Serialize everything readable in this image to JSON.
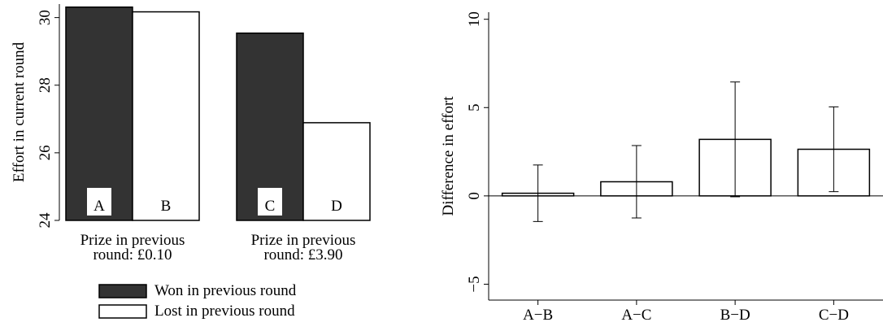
{
  "chart_data": [
    {
      "type": "grouped-bar",
      "ylabel": "Effort in current round",
      "categories": [
        "Prize in previous round: £0.10",
        "Prize in previous round: £3.90"
      ],
      "series": [
        {
          "name": "Won in previous round",
          "color": "#333333",
          "values": [
            30.31,
            29.54
          ],
          "bar_labels": [
            "A",
            "C"
          ]
        },
        {
          "name": "Lost in previous round",
          "color": "#ffffff",
          "values": [
            30.17,
            26.89
          ],
          "bar_labels": [
            "B",
            "D"
          ]
        }
      ],
      "ylim": [
        24,
        30.4
      ],
      "yticks": [
        24,
        26,
        28,
        30
      ]
    },
    {
      "type": "errorbar",
      "ylabel": "Difference in effort",
      "categories": [
        "A−B",
        "A−C",
        "B−D",
        "C−D"
      ],
      "values": [
        0.15,
        0.8,
        3.2,
        2.64
      ],
      "errors": [
        1.6,
        2.05,
        3.25,
        2.4
      ],
      "color": "#ffffff",
      "ylim": [
        -5.9,
        10.4
      ],
      "yticks": [
        {
          "value": -5,
          "label": "−5"
        },
        0,
        5,
        10
      ],
      "zero_line": true
    }
  ]
}
